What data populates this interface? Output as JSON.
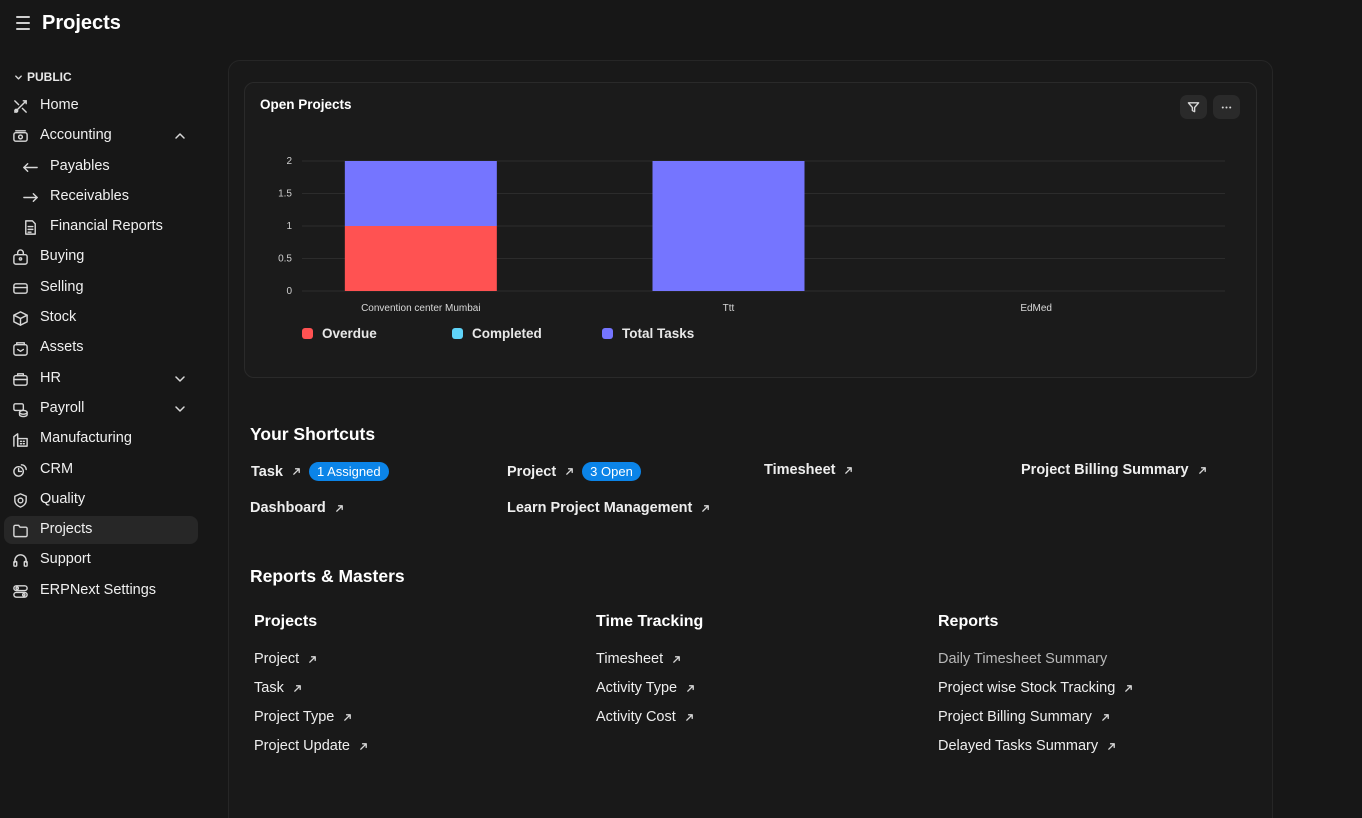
{
  "header": {
    "title": "Projects"
  },
  "sidebar": {
    "section": "PUBLIC",
    "items": [
      {
        "label": "Home",
        "icon": "home-icon"
      },
      {
        "label": "Accounting",
        "icon": "accounting-icon"
      },
      {
        "label": "Payables",
        "icon": "arrow-left-icon"
      },
      {
        "label": "Receivables",
        "icon": "arrow-right-icon"
      },
      {
        "label": "Financial Reports",
        "icon": "document-icon"
      },
      {
        "label": "Buying",
        "icon": "shopping-bag-icon"
      },
      {
        "label": "Selling",
        "icon": "card-icon"
      },
      {
        "label": "Stock",
        "icon": "box-icon"
      },
      {
        "label": "Assets",
        "icon": "assets-icon"
      },
      {
        "label": "HR",
        "icon": "briefcase-icon"
      },
      {
        "label": "Payroll",
        "icon": "payroll-icon"
      },
      {
        "label": "Manufacturing",
        "icon": "factory-icon"
      },
      {
        "label": "CRM",
        "icon": "crm-icon"
      },
      {
        "label": "Quality",
        "icon": "quality-icon"
      },
      {
        "label": "Projects",
        "icon": "folder-icon"
      },
      {
        "label": "Support",
        "icon": "headset-icon"
      },
      {
        "label": "ERPNext Settings",
        "icon": "settings-icon"
      }
    ]
  },
  "chart_card": {
    "title": "Open Projects"
  },
  "chart_data": {
    "type": "bar",
    "stacked": true,
    "categories": [
      "Convention center Mumbai",
      "Ttt",
      "EdMed"
    ],
    "series": [
      {
        "name": "Overdue",
        "color": "#ff5252",
        "values": [
          1,
          0,
          0
        ]
      },
      {
        "name": "Completed",
        "color": "#5fd3f8",
        "values": [
          0,
          0,
          0
        ]
      },
      {
        "name": "Total Tasks",
        "color": "#7575ff",
        "values": [
          1,
          2,
          0
        ]
      }
    ],
    "yticks": [
      "0",
      "0.5",
      "1",
      "1.5",
      "2"
    ],
    "ylim": [
      0,
      2
    ],
    "grid": true,
    "legend": "bottom-left"
  },
  "shortcuts": {
    "title": "Your Shortcuts",
    "items": [
      {
        "label": "Task",
        "badge": "1 Assigned"
      },
      {
        "label": "Project",
        "badge": "3 Open"
      },
      {
        "label": "Timesheet"
      },
      {
        "label": "Project Billing Summary"
      },
      {
        "label": "Dashboard"
      },
      {
        "label": "Learn Project Management"
      }
    ]
  },
  "reports": {
    "title": "Reports & Masters",
    "columns": [
      {
        "title": "Projects",
        "links": [
          "Project",
          "Task",
          "Project Type",
          "Project Update"
        ]
      },
      {
        "title": "Time Tracking",
        "links": [
          "Timesheet",
          "Activity Type",
          "Activity Cost"
        ]
      },
      {
        "title": "Reports",
        "links": [
          "Daily Timesheet Summary",
          "Project wise Stock Tracking",
          "Project Billing Summary",
          "Delayed Tasks Summary"
        ]
      }
    ]
  }
}
